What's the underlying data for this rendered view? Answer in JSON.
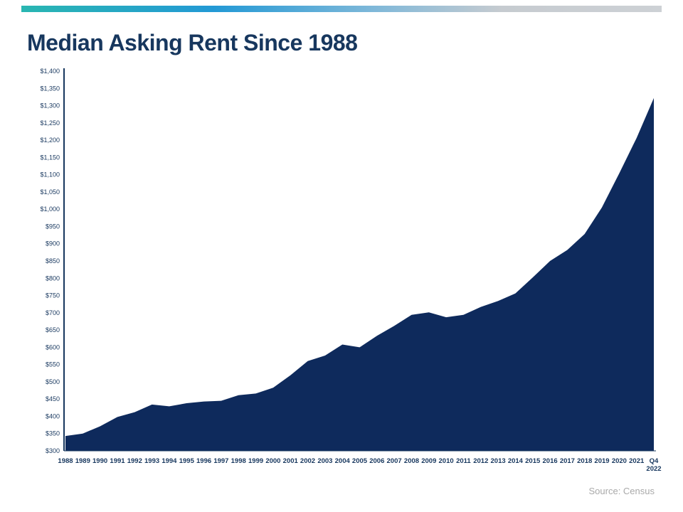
{
  "page": {
    "title": "Median Asking Rent Since 1988",
    "source": "Source: Census"
  },
  "colors": {
    "area": "#0e2a5c",
    "axis": "#17375e",
    "title_text": "#17375e",
    "source_text": "#a9a9a9",
    "gradient_left": "#29b6b1",
    "gradient_mid": "#2399d5",
    "gradient_right": "#cdd1d5"
  },
  "chart_data": {
    "type": "area",
    "title": "Median Asking Rent Since 1988",
    "series_name": "Median Asking Rent",
    "x": [
      "1988",
      "1989",
      "1990",
      "1991",
      "1992",
      "1993",
      "1994",
      "1995",
      "1996",
      "1997",
      "1998",
      "1999",
      "2000",
      "2001",
      "2002",
      "2003",
      "2004",
      "2005",
      "2006",
      "2007",
      "2008",
      "2009",
      "2010",
      "2011",
      "2012",
      "2013",
      "2014",
      "2015",
      "2016",
      "2017",
      "2018",
      "2019",
      "2020",
      "2021",
      "Q4 2022"
    ],
    "values": [
      343,
      350,
      371,
      398,
      412,
      434,
      429,
      438,
      443,
      445,
      461,
      466,
      483,
      519,
      560,
      576,
      608,
      600,
      633,
      662,
      694,
      701,
      687,
      694,
      717,
      734,
      756,
      802,
      850,
      882,
      928,
      1005,
      1104,
      1206,
      1322
    ],
    "ylim": [
      300,
      1400
    ],
    "ytick_step": 50,
    "ytick_labels": [
      "$300",
      "$350",
      "$400",
      "$450",
      "$500",
      "$550",
      "$600",
      "$650",
      "$700",
      "$750",
      "$800",
      "$850",
      "$900",
      "$950",
      "$1,000",
      "$1,050",
      "$1,100",
      "$1,150",
      "$1,200",
      "$1,250",
      "$1,300",
      "$1,350",
      "$1,400"
    ],
    "xlabel": "",
    "ylabel": "",
    "grid": false,
    "legend": "none",
    "source": "Source: Census"
  }
}
